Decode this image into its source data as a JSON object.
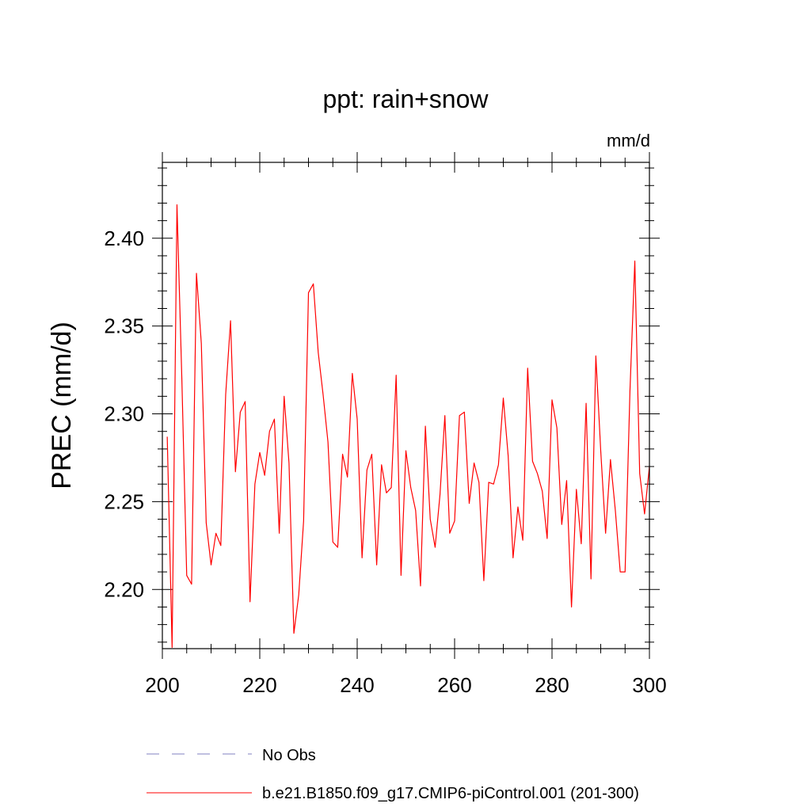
{
  "chart_data": {
    "type": "line",
    "title": "ppt: rain+snow",
    "units_label": "mm/d",
    "xlabel": "",
    "ylabel": "PREC  (mm/d)",
    "xlim": [
      200,
      300
    ],
    "ylim": [
      2.1663,
      2.4432
    ],
    "x_ticks": [
      200,
      220,
      240,
      260,
      280,
      300
    ],
    "x_tick_labels": [
      "200",
      "220",
      "240",
      "260",
      "280",
      "300"
    ],
    "y_ticks": [
      2.2,
      2.25,
      2.3,
      2.35,
      2.4
    ],
    "y_tick_labels": [
      "2.20",
      "2.25",
      "2.30",
      "2.35",
      "2.40"
    ],
    "grid": false,
    "legend_position": "bottom",
    "series": [
      {
        "name": "No Obs",
        "color": "#8080c0",
        "dashed": true,
        "x": [],
        "y": []
      },
      {
        "name": "b.e21.B1850.f09_g17.CMIP6-piControl.001 (201-300)",
        "color": "#ff0000",
        "dashed": false,
        "x": [
          201,
          202,
          203,
          204,
          205,
          206,
          207,
          208,
          209,
          210,
          211,
          212,
          213,
          214,
          215,
          216,
          217,
          218,
          219,
          220,
          221,
          222,
          223,
          224,
          225,
          226,
          227,
          228,
          229,
          230,
          231,
          232,
          233,
          234,
          235,
          236,
          237,
          238,
          239,
          240,
          241,
          242,
          243,
          244,
          245,
          246,
          247,
          248,
          249,
          250,
          251,
          252,
          253,
          254,
          255,
          256,
          257,
          258,
          259,
          260,
          261,
          262,
          263,
          264,
          265,
          266,
          267,
          268,
          269,
          270,
          271,
          272,
          273,
          274,
          275,
          276,
          277,
          278,
          279,
          280,
          281,
          282,
          283,
          284,
          285,
          286,
          287,
          288,
          289,
          290,
          291,
          292,
          293,
          294,
          295,
          296,
          297,
          298,
          299,
          300
        ],
        "y": [
          2.287,
          2.167,
          2.419,
          2.32,
          2.208,
          2.203,
          2.38,
          2.34,
          2.238,
          2.214,
          2.232,
          2.225,
          2.311,
          2.353,
          2.267,
          2.301,
          2.307,
          2.193,
          2.26,
          2.278,
          2.265,
          2.29,
          2.297,
          2.232,
          2.31,
          2.272,
          2.175,
          2.197,
          2.239,
          2.369,
          2.374,
          2.335,
          2.311,
          2.284,
          2.227,
          2.224,
          2.277,
          2.264,
          2.323,
          2.297,
          2.218,
          2.268,
          2.277,
          2.214,
          2.271,
          2.255,
          2.258,
          2.322,
          2.208,
          2.279,
          2.258,
          2.245,
          2.202,
          2.293,
          2.24,
          2.224,
          2.254,
          2.299,
          2.232,
          2.239,
          2.299,
          2.301,
          2.249,
          2.272,
          2.261,
          2.205,
          2.261,
          2.26,
          2.271,
          2.309,
          2.276,
          2.218,
          2.247,
          2.228,
          2.326,
          2.273,
          2.266,
          2.256,
          2.229,
          2.308,
          2.292,
          2.237,
          2.262,
          2.19,
          2.257,
          2.226,
          2.306,
          2.206,
          2.333,
          2.279,
          2.232,
          2.274,
          2.245,
          2.21,
          2.21,
          2.313,
          2.387,
          2.266,
          2.243,
          2.27
        ]
      }
    ]
  }
}
